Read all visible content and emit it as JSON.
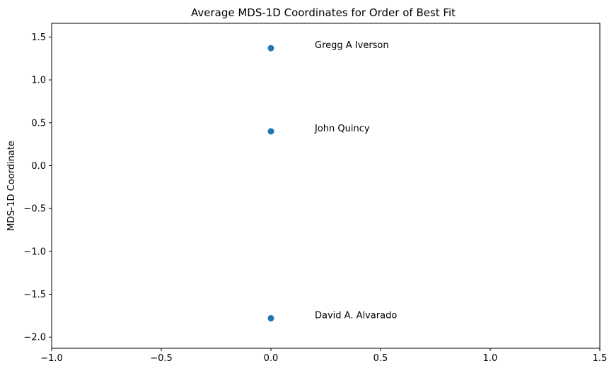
{
  "chart_data": {
    "type": "scatter",
    "title": "Average MDS-1D Coordinates for Order of Best Fit",
    "xlabel": "",
    "ylabel": "MDS-1D Coordinate",
    "xlim": [
      -1.0,
      1.5
    ],
    "ylim": [
      -2.13,
      1.66
    ],
    "x_ticks": [
      -1.0,
      -0.5,
      0.0,
      0.5,
      1.0,
      1.5
    ],
    "x_tick_labels": [
      "−1.0",
      "−0.5",
      "0.0",
      "0.5",
      "1.0",
      "1.5"
    ],
    "y_ticks": [
      1.5,
      1.0,
      0.5,
      0.0,
      -0.5,
      -1.0,
      -1.5,
      -2.0
    ],
    "y_tick_labels": [
      "1.5",
      "1.0",
      "0.5",
      "0.0",
      "−0.5",
      "−1.0",
      "−1.5",
      "−2.0"
    ],
    "grid": false,
    "marker_color": "#1f77b4",
    "points": [
      {
        "x": 0.0,
        "y": 1.37,
        "label": "Gregg A Iverson",
        "label_x": 0.2,
        "label_y": 1.37
      },
      {
        "x": 0.0,
        "y": 0.4,
        "label": "John Quincy",
        "label_x": 0.2,
        "label_y": 0.4
      },
      {
        "x": 0.0,
        "y": -1.78,
        "label": "David A. Alvarado",
        "label_x": 0.2,
        "label_y": -1.78
      }
    ]
  }
}
